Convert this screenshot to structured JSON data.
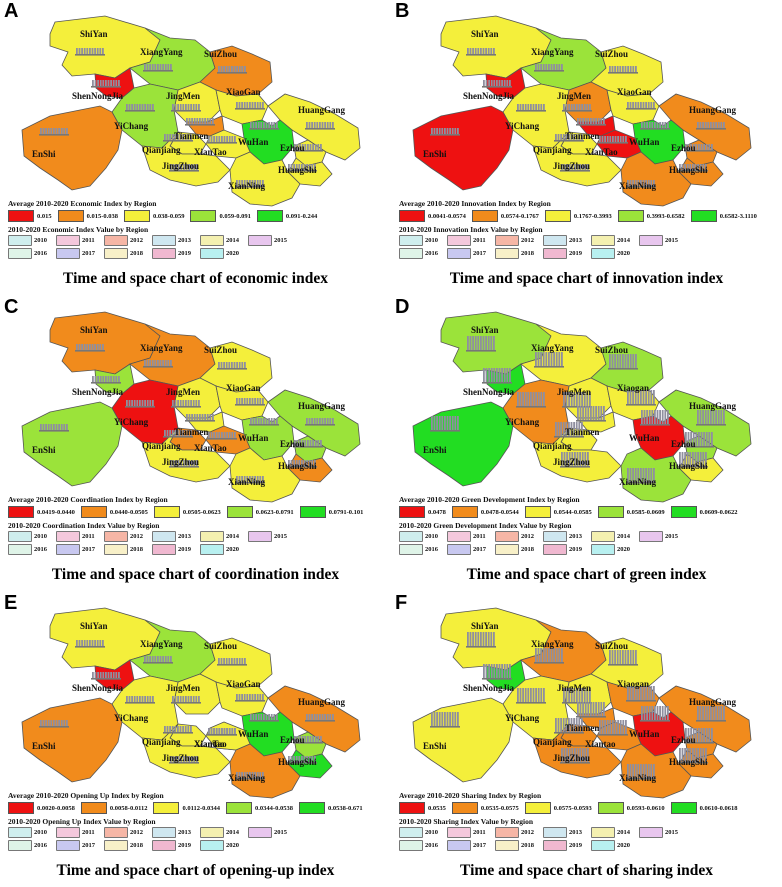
{
  "colors": {
    "red": "#ee1111",
    "orange": "#f18b1c",
    "yellow": "#f4ef3b",
    "lightgreen": "#9be33a",
    "green": "#22dd22",
    "bar": "#8f8f9f"
  },
  "year_colors": [
    "#cfeeee",
    "#f4c8dc",
    "#f6b6a6",
    "#cfe7f0",
    "#f4f0b0",
    "#e8c6ee",
    "#dff4e8",
    "#c8c8f0",
    "#f8f0c8",
    "#f0b8d0",
    "#b8f0f0"
  ],
  "panels": [
    {
      "letter": "A",
      "caption": "Time and space chart of economic index",
      "legend_title": "Average 2010-2020 Economic Index by Region",
      "legend": [
        {
          "label": "0.015",
          "color": "#ee1111"
        },
        {
          "label": "0.015-0.038",
          "color": "#f18b1c"
        },
        {
          "label": "0.038-0.059",
          "color": "#f4ef3b"
        },
        {
          "label": "0.059-0.091",
          "color": "#9be33a"
        },
        {
          "label": "0.091-0.244",
          "color": "#22dd22"
        }
      ],
      "years_title": "2010-2020 Economic Index Value by Region",
      "years": [
        "2010",
        "2011",
        "2012",
        "2013",
        "2014",
        "2015",
        "2016",
        "2017",
        "2018",
        "2019",
        "2020"
      ],
      "regions": [
        {
          "name": "ShiYan",
          "color": "#f4ef3b"
        },
        {
          "name": "XiangYang",
          "color": "#9be33a"
        },
        {
          "name": "SuiZhou",
          "color": "#f18b1c"
        },
        {
          "name": "ShenNongJia",
          "color": "#ee1111"
        },
        {
          "name": "JingMen",
          "color": "#f4ef3b"
        },
        {
          "name": "XiaoGan",
          "color": "#f4ef3b"
        },
        {
          "name": "YiChang",
          "color": "#9be33a"
        },
        {
          "name": "HuangGang",
          "color": "#f4ef3b"
        },
        {
          "name": "EnShi",
          "color": "#f18b1c"
        },
        {
          "name": "Tianmen",
          "color": "#f18b1c"
        },
        {
          "name": "WuHan",
          "color": "#22dd22"
        },
        {
          "name": "Qianjiang",
          "color": "#f4ef3b"
        },
        {
          "name": "XianTao",
          "color": "#f4ef3b"
        },
        {
          "name": "Ezhou",
          "color": "#f4ef3b"
        },
        {
          "name": "JingZhou",
          "color": "#f4ef3b"
        },
        {
          "name": "HuangShi",
          "color": "#f4ef3b"
        },
        {
          "name": "XianNing",
          "color": "#f4ef3b"
        }
      ]
    },
    {
      "letter": "B",
      "caption": "Time and space chart of innovation index",
      "legend_title": "Average 2010-2020 Innovation Index by Region",
      "legend": [
        {
          "label": "0.0041-0.0574",
          "color": "#ee1111"
        },
        {
          "label": "0.0574-0.1767",
          "color": "#f18b1c"
        },
        {
          "label": "0.1767-0.3993",
          "color": "#f4ef3b"
        },
        {
          "label": "0.3993-0.6582",
          "color": "#9be33a"
        },
        {
          "label": "0.6582-3.1110",
          "color": "#22dd22"
        }
      ],
      "years_title": "2010-2020 Innovation Index Value by Region",
      "years": [
        "2010",
        "2011",
        "2012",
        "2013",
        "2014",
        "2015",
        "2016",
        "2017",
        "2018",
        "2019",
        "2020"
      ],
      "regions": [
        {
          "name": "ShiYan",
          "color": "#f4ef3b"
        },
        {
          "name": "XiangYang",
          "color": "#9be33a"
        },
        {
          "name": "SuiZhou",
          "color": "#f4ef3b"
        },
        {
          "name": "ShenNongJia",
          "color": "#ee1111"
        },
        {
          "name": "JingMen",
          "color": "#f18b1c"
        },
        {
          "name": "XiaoGan",
          "color": "#f4ef3b"
        },
        {
          "name": "YiChang",
          "color": "#f4ef3b"
        },
        {
          "name": "HuangGang",
          "color": "#f18b1c"
        },
        {
          "name": "EnShi",
          "color": "#ee1111"
        },
        {
          "name": "Tianmen",
          "color": "#ee1111"
        },
        {
          "name": "WuHan",
          "color": "#22dd22"
        },
        {
          "name": "Qianjiang",
          "color": "#f4ef3b"
        },
        {
          "name": "XianTao",
          "color": "#ee1111"
        },
        {
          "name": "Ezhou",
          "color": "#f18b1c"
        },
        {
          "name": "JingZhou",
          "color": "#f4ef3b"
        },
        {
          "name": "HuangShi",
          "color": "#f18b1c"
        },
        {
          "name": "XianNing",
          "color": "#f18b1c"
        }
      ]
    },
    {
      "letter": "C",
      "caption": "Time and space chart of coordination index",
      "legend_title": "Average 2010-2020 Coordination Index by Region",
      "legend": [
        {
          "label": "0.0419-0.0440",
          "color": "#ee1111"
        },
        {
          "label": "0.0440-0.0505",
          "color": "#f18b1c"
        },
        {
          "label": "0.0505-0.0623",
          "color": "#f4ef3b"
        },
        {
          "label": "0.0623-0.0791",
          "color": "#9be33a"
        },
        {
          "label": "0.0791-0.101",
          "color": "#22dd22"
        }
      ],
      "years_title": "2010-2020 Coordination Index Value by Region",
      "years": [
        "2010",
        "2011",
        "2012",
        "2013",
        "2014",
        "2015",
        "2016",
        "2017",
        "2018",
        "2019",
        "2020"
      ],
      "regions": [
        {
          "name": "ShiYan",
          "color": "#f18b1c"
        },
        {
          "name": "XiangYang",
          "color": "#f18b1c"
        },
        {
          "name": "SuiZhou",
          "color": "#f4ef3b"
        },
        {
          "name": "ShenNongJia",
          "color": "#9be33a"
        },
        {
          "name": "JingMen",
          "color": "#f4ef3b"
        },
        {
          "name": "XiaoGan",
          "color": "#f4ef3b"
        },
        {
          "name": "YiChang",
          "color": "#ee1111"
        },
        {
          "name": "HuangGang",
          "color": "#9be33a"
        },
        {
          "name": "EnShi",
          "color": "#9be33a"
        },
        {
          "name": "Tianmen",
          "color": "#f4ef3b"
        },
        {
          "name": "WuHan",
          "color": "#9be33a"
        },
        {
          "name": "Qianjiang",
          "color": "#f18b1c"
        },
        {
          "name": "XianTao",
          "color": "#f18b1c"
        },
        {
          "name": "Ezhou",
          "color": "#9be33a"
        },
        {
          "name": "JingZhou",
          "color": "#f4ef3b"
        },
        {
          "name": "HuangShi",
          "color": "#f18b1c"
        },
        {
          "name": "XianNing",
          "color": "#f4ef3b"
        }
      ]
    },
    {
      "letter": "D",
      "caption": "Time and space chart of green index",
      "legend_title": "Average 2010-2020 Green Development Index by Region",
      "legend": [
        {
          "label": "0.0478",
          "color": "#ee1111"
        },
        {
          "label": "0.0478-0.0544",
          "color": "#f18b1c"
        },
        {
          "label": "0.0544-0.0585",
          "color": "#f4ef3b"
        },
        {
          "label": "0.0585-0.0609",
          "color": "#9be33a"
        },
        {
          "label": "0.0609-0.0622",
          "color": "#22dd22"
        }
      ],
      "years_title": "2010-2020 Green Development Index Value by Region",
      "years": [
        "2010",
        "2011",
        "2012",
        "2013",
        "2014",
        "2015",
        "2016",
        "2017",
        "2018",
        "2019",
        "2020"
      ],
      "regions": [
        {
          "name": "ShiYan",
          "color": "#9be33a"
        },
        {
          "name": "XiangYang",
          "color": "#f4ef3b"
        },
        {
          "name": "SuiZhou",
          "color": "#9be33a"
        },
        {
          "name": "ShenNongJia",
          "color": "#22dd22"
        },
        {
          "name": "JingMen",
          "color": "#f4ef3b"
        },
        {
          "name": "Xiaogan",
          "color": "#f4ef3b"
        },
        {
          "name": "YiChang",
          "color": "#f18b1c"
        },
        {
          "name": "HuangGang",
          "color": "#9be33a"
        },
        {
          "name": "EnShi",
          "color": "#22dd22"
        },
        {
          "name": "Tianmen",
          "color": "#f4ef3b"
        },
        {
          "name": "WuHan",
          "color": "#ee1111"
        },
        {
          "name": "Qianjiang",
          "color": "#f4ef3b"
        },
        {
          "name": "Ezhou",
          "color": "#9be33a"
        },
        {
          "name": "JingZhou",
          "color": "#f4ef3b"
        },
        {
          "name": "HuangShi",
          "color": "#f4ef3b"
        },
        {
          "name": "XianNing",
          "color": "#9be33a"
        }
      ]
    },
    {
      "letter": "E",
      "caption": "Time and space chart of opening-up index",
      "legend_title": "Average 2010-2020 Opening Up Index by Region",
      "legend": [
        {
          "label": "0.0020-0.0058",
          "color": "#ee1111"
        },
        {
          "label": "0.0058-0.0112",
          "color": "#f18b1c"
        },
        {
          "label": "0.0112-0.0344",
          "color": "#f4ef3b"
        },
        {
          "label": "0.0344-0.0538",
          "color": "#9be33a"
        },
        {
          "label": "0.0538-0.671",
          "color": "#22dd22"
        }
      ],
      "years_title": "2010-2020 Opening Up Index Value by Region",
      "years": [
        "2010",
        "2011",
        "2012",
        "2013",
        "2014",
        "2015",
        "2016",
        "2017",
        "2018",
        "2019",
        "2020"
      ],
      "regions": [
        {
          "name": "ShiYan",
          "color": "#f4ef3b"
        },
        {
          "name": "XiangYang",
          "color": "#9be33a"
        },
        {
          "name": "SuiZhou",
          "color": "#f4ef3b"
        },
        {
          "name": "ShenNongJia",
          "color": "#ee1111"
        },
        {
          "name": "JingMen",
          "color": "#f4ef3b"
        },
        {
          "name": "XiaoGan",
          "color": "#f4ef3b"
        },
        {
          "name": "YiChang",
          "color": "#f4ef3b"
        },
        {
          "name": "HuangGang",
          "color": "#f18b1c"
        },
        {
          "name": "EnShi",
          "color": "#f18b1c"
        },
        {
          "name": "Xiantao",
          "color": "#ee1111"
        },
        {
          "name": "WuHan",
          "color": "#22dd22"
        },
        {
          "name": "Qianjiang",
          "color": "#f4ef3b"
        },
        {
          "name": "XianTao",
          "color": "#f4ef3b"
        },
        {
          "name": "Ezhou",
          "color": "#9be33a"
        },
        {
          "name": "JingZhou",
          "color": "#f4ef3b"
        },
        {
          "name": "HuangShi",
          "color": "#22dd22"
        },
        {
          "name": "XianNing",
          "color": "#f18b1c"
        }
      ]
    },
    {
      "letter": "F",
      "caption": "Time and space chart of sharing index",
      "legend_title": "Average 2010-2020 Sharing Index by Region",
      "legend": [
        {
          "label": "0.0535",
          "color": "#ee1111"
        },
        {
          "label": "0.0535-0.0575",
          "color": "#f18b1c"
        },
        {
          "label": "0.0575-0.0593",
          "color": "#f4ef3b"
        },
        {
          "label": "0.0593-0.0610",
          "color": "#9be33a"
        },
        {
          "label": "0.0610-0.0618",
          "color": "#22dd22"
        }
      ],
      "years_title": "2010-2020 Sharing Index Value by Region",
      "years": [
        "2010",
        "2011",
        "2012",
        "2013",
        "2014",
        "2015",
        "2016",
        "2017",
        "2018",
        "2019",
        "2020"
      ],
      "regions": [
        {
          "name": "ShiYan",
          "color": "#f4ef3b"
        },
        {
          "name": "XiangYang",
          "color": "#f18b1c"
        },
        {
          "name": "SuiZhou",
          "color": "#f4ef3b"
        },
        {
          "name": "ShenNongJia",
          "color": "#22dd22"
        },
        {
          "name": "JingMen",
          "color": "#f4ef3b"
        },
        {
          "name": "Xiaogan",
          "color": "#f18b1c"
        },
        {
          "name": "YiChang",
          "color": "#f4ef3b"
        },
        {
          "name": "HuangGang",
          "color": "#f18b1c"
        },
        {
          "name": "EnShi",
          "color": "#f4ef3b"
        },
        {
          "name": "Tianmen",
          "color": "#f18b1c"
        },
        {
          "name": "WuHan",
          "color": "#ee1111"
        },
        {
          "name": "Qianjiang",
          "color": "#f18b1c"
        },
        {
          "name": "Xiantao",
          "color": "#f18b1c"
        },
        {
          "name": "Ezhou",
          "color": "#f18b1c"
        },
        {
          "name": "JingZhou",
          "color": "#f18b1c"
        },
        {
          "name": "HuangShi",
          "color": "#f18b1c"
        },
        {
          "name": "XianNing",
          "color": "#f18b1c"
        }
      ]
    }
  ]
}
